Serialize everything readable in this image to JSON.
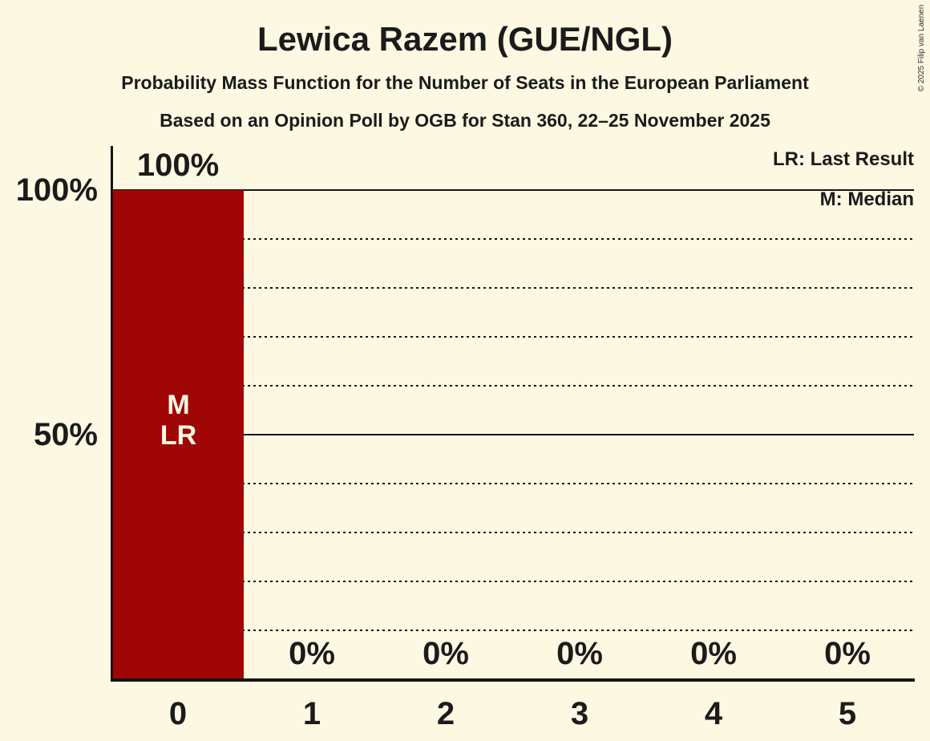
{
  "app": {
    "background_color": "#fdf8e2",
    "text_color": "#1b1b1b",
    "axis_color": "#141414"
  },
  "header": {
    "title": "Lewica Razem (GUE/NGL)",
    "subtitle": "Probability Mass Function for the Number of Seats in the European Parliament",
    "poll_info": "Based on an Opinion Poll by OGB for Stan 360, 22–25 November 2025"
  },
  "legend": {
    "last_result": "LR: Last Result",
    "median": "M: Median"
  },
  "y_axis": {
    "label_100": "100%",
    "label_50": "50%"
  },
  "x_axis": {
    "ticks": [
      "0",
      "1",
      "2",
      "3",
      "4",
      "5"
    ]
  },
  "bars": {
    "seat0": {
      "value_label": "100%",
      "median_marker": "M",
      "last_result_marker": "LR",
      "color": "#a00606"
    },
    "zero_labels": [
      "0%",
      "0%",
      "0%",
      "0%",
      "0%"
    ]
  },
  "copyright": "© 2025 Filip van Laenen",
  "chart_data": {
    "type": "bar",
    "title": "Lewica Razem (GUE/NGL)",
    "subtitle": "Probability Mass Function for the Number of Seats in the European Parliament",
    "source": "Based on an Opinion Poll by OGB for Stan 360, 22–25 November 2025",
    "categories": [
      "0",
      "1",
      "2",
      "3",
      "4",
      "5"
    ],
    "values_percent": [
      100,
      0,
      0,
      0,
      0,
      0
    ],
    "value_labels": [
      "100%",
      "0%",
      "0%",
      "0%",
      "0%",
      "0%"
    ],
    "ylim": [
      0,
      100
    ],
    "y_tick_values": [
      100,
      50
    ],
    "y_tick_labels": [
      "100%",
      "50%"
    ],
    "grid": {
      "solid_lines_percent": [
        100,
        50
      ],
      "dotted_lines_percent": [
        90,
        80,
        70,
        60,
        40,
        30,
        20,
        10
      ]
    },
    "legend_position": "top-right",
    "legend": [
      {
        "abbr": "LR",
        "label": "LR: Last Result"
      },
      {
        "abbr": "M",
        "label": "M: Median"
      }
    ],
    "annotations": [
      {
        "marker": "M",
        "category": "0",
        "meaning": "Median"
      },
      {
        "marker": "LR",
        "category": "0",
        "meaning": "Last Result"
      }
    ],
    "bar_color": "#a00606",
    "background_color": "#fdf8e2"
  }
}
